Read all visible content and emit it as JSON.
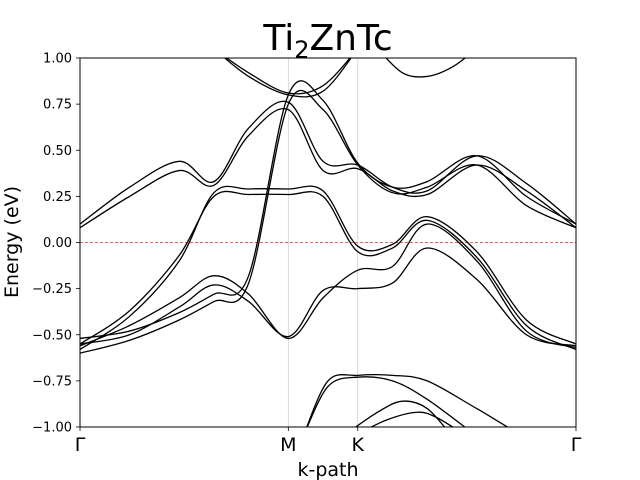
{
  "chart_data": {
    "type": "line",
    "title_main": "Ti",
    "title_sub": "2",
    "title_rest": "ZnTc",
    "xlabel": "k-path",
    "ylabel": "Energy (eV)",
    "ylim": [
      -1.0,
      1.0
    ],
    "xlim": [
      0,
      1
    ],
    "grid": "vertical lines at high-symmetry points",
    "yticks": [
      {
        "value": 1.0,
        "label": "1.00"
      },
      {
        "value": 0.75,
        "label": "0.75"
      },
      {
        "value": 0.5,
        "label": "0.50"
      },
      {
        "value": 0.25,
        "label": "0.25"
      },
      {
        "value": 0.0,
        "label": "0.00"
      },
      {
        "value": -0.25,
        "label": "−0.25"
      },
      {
        "value": -0.5,
        "label": "−0.50"
      },
      {
        "value": -0.75,
        "label": "−0.75"
      },
      {
        "value": -1.0,
        "label": "−1.00"
      }
    ],
    "kpoints": [
      {
        "label": "Γ",
        "x": 0.0
      },
      {
        "label": "M",
        "x": 0.42
      },
      {
        "label": "K",
        "x": 0.56
      },
      {
        "label": "Γ",
        "x": 1.0
      }
    ],
    "fermi_level": {
      "y": 0.0,
      "color": "#e03030"
    },
    "line_color": "#000000",
    "series": [
      {
        "x": [
          0.0,
          0.1,
          0.2,
          0.27,
          0.34,
          0.42,
          0.49,
          0.56,
          0.63,
          0.7,
          0.8,
          0.9,
          1.0
        ],
        "y": [
          -0.6,
          -0.53,
          -0.42,
          -0.32,
          -0.22,
          0.75,
          0.72,
          0.42,
          0.27,
          0.3,
          0.42,
          0.2,
          0.08
        ]
      },
      {
        "x": [
          0.0,
          0.1,
          0.2,
          0.27,
          0.34,
          0.42,
          0.49,
          0.56,
          0.63,
          0.7,
          0.8,
          0.9,
          1.0
        ],
        "y": [
          -0.52,
          -0.48,
          -0.38,
          -0.28,
          -0.18,
          0.8,
          0.77,
          0.43,
          0.3,
          0.33,
          0.47,
          0.25,
          0.1
        ]
      },
      {
        "x": [
          0.0,
          0.1,
          0.2,
          0.27,
          0.34,
          0.42,
          0.49,
          0.56,
          0.63,
          0.7,
          0.8,
          0.9,
          1.0
        ],
        "y": [
          0.1,
          0.3,
          0.44,
          0.33,
          0.62,
          0.76,
          0.44,
          0.42,
          0.3,
          0.28,
          0.47,
          0.32,
          0.1
        ]
      },
      {
        "x": [
          0.0,
          0.1,
          0.2,
          0.27,
          0.34,
          0.42,
          0.49,
          0.56,
          0.63,
          0.7,
          0.8,
          0.9,
          1.0
        ],
        "y": [
          0.08,
          0.25,
          0.39,
          0.31,
          0.58,
          0.72,
          0.39,
          0.4,
          0.28,
          0.26,
          0.42,
          0.28,
          0.08
        ]
      },
      {
        "x": [
          0.0,
          0.1,
          0.2,
          0.27,
          0.34,
          0.42,
          0.49,
          0.56,
          0.63,
          0.7,
          0.8,
          0.9,
          1.0
        ],
        "y": [
          -0.58,
          -0.4,
          -0.1,
          0.27,
          0.29,
          0.29,
          0.28,
          -0.02,
          -0.01,
          0.14,
          -0.05,
          -0.42,
          -0.55
        ]
      },
      {
        "x": [
          0.0,
          0.1,
          0.2,
          0.27,
          0.34,
          0.42,
          0.49,
          0.56,
          0.63,
          0.7,
          0.8,
          0.9,
          1.0
        ],
        "y": [
          -0.55,
          -0.37,
          -0.07,
          0.25,
          0.26,
          0.26,
          0.25,
          -0.05,
          -0.03,
          0.12,
          -0.08,
          -0.45,
          -0.58
        ]
      },
      {
        "x": [
          0.0,
          0.1,
          0.2,
          0.27,
          0.34,
          0.42,
          0.49,
          0.56,
          0.63,
          0.7,
          0.8,
          0.9,
          1.0
        ],
        "y": [
          -0.56,
          -0.45,
          -0.3,
          -0.18,
          -0.28,
          -0.52,
          -0.3,
          -0.15,
          -0.13,
          0.1,
          -0.1,
          -0.48,
          -0.57
        ]
      },
      {
        "x": [
          0.0,
          0.1,
          0.2,
          0.27,
          0.34,
          0.42,
          0.49,
          0.56,
          0.63,
          0.7,
          0.8,
          0.9,
          1.0
        ],
        "y": [
          -0.55,
          -0.5,
          -0.35,
          -0.23,
          -0.32,
          -0.51,
          -0.26,
          -0.25,
          -0.22,
          -0.03,
          -0.2,
          -0.5,
          -0.56
        ]
      },
      {
        "x": [
          0.27,
          0.34,
          0.42,
          0.49,
          0.56
        ],
        "y": [
          1.05,
          0.92,
          0.81,
          0.85,
          1.05
        ]
      },
      {
        "x": [
          0.27,
          0.34,
          0.42,
          0.49,
          0.56
        ],
        "y": [
          1.05,
          0.9,
          0.8,
          0.82,
          1.05
        ]
      },
      {
        "x": [
          0.6,
          0.65,
          0.7,
          0.75,
          0.8
        ],
        "y": [
          1.05,
          0.92,
          0.9,
          0.95,
          1.05
        ]
      },
      {
        "x": [
          0.45,
          0.5,
          0.56,
          0.63,
          0.7,
          0.8,
          0.9,
          1.0
        ],
        "y": [
          -1.05,
          -0.75,
          -0.72,
          -0.72,
          -0.75,
          -0.9,
          -1.05,
          -1.1
        ]
      },
      {
        "x": [
          0.45,
          0.5,
          0.56,
          0.63,
          0.7,
          0.8
        ],
        "y": [
          -1.05,
          -0.78,
          -0.73,
          -0.75,
          -0.85,
          -1.05
        ]
      },
      {
        "x": [
          0.53,
          0.6,
          0.65,
          0.7,
          0.75
        ],
        "y": [
          -1.05,
          -0.92,
          -0.86,
          -0.9,
          -1.05
        ]
      },
      {
        "x": [
          0.55,
          0.62,
          0.68,
          0.72,
          0.78
        ],
        "y": [
          -1.05,
          -0.96,
          -0.92,
          -0.95,
          -1.05
        ]
      }
    ]
  }
}
